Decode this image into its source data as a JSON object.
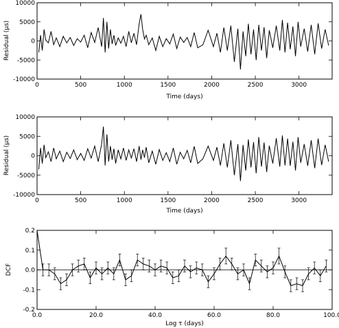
{
  "chart_data": [
    {
      "type": "line",
      "title": "",
      "xlabel": "Time (days)",
      "ylabel": "Residual (μs)",
      "xlim": [
        0,
        3380
      ],
      "ylim": [
        -10000,
        10000
      ],
      "xticks": [
        0,
        500,
        1000,
        1500,
        2000,
        2500,
        3000
      ],
      "yticks": [
        -10000,
        -5000,
        0,
        5000,
        10000
      ],
      "grid": false,
      "series": [
        {
          "x": [
            20,
            40,
            60,
            80,
            100,
            130,
            160,
            190,
            220,
            260,
            300,
            340,
            380,
            420,
            460,
            500,
            540,
            580,
            620,
            660,
            700,
            740,
            760,
            780,
            800,
            820,
            840,
            860,
            880,
            900,
            930,
            960,
            990,
            1020,
            1050,
            1080,
            1110,
            1140,
            1170,
            1190,
            1210,
            1230,
            1250,
            1280,
            1320,
            1360,
            1400,
            1440,
            1480,
            1520,
            1560,
            1600,
            1640,
            1680,
            1720,
            1760,
            1800,
            1840,
            1900,
            1960,
            2020,
            2060,
            2100,
            2140,
            2180,
            2220,
            2260,
            2300,
            2330,
            2360,
            2390,
            2420,
            2450,
            2480,
            2510,
            2540,
            2570,
            2600,
            2630,
            2660,
            2700,
            2740,
            2780,
            2810,
            2840,
            2870,
            2900,
            2930,
            2960,
            2990,
            3020,
            3060,
            3100,
            3140,
            3180,
            3220,
            3260,
            3300,
            3340
          ],
          "y": [
            -3000,
            1500,
            -2500,
            3000,
            200,
            -500,
            2500,
            -1000,
            800,
            -1500,
            1200,
            -500,
            900,
            -1200,
            600,
            -300,
            1500,
            -1800,
            2200,
            -400,
            3500,
            -1500,
            6000,
            -3000,
            5000,
            -2000,
            3000,
            -800,
            1500,
            -1200,
            800,
            -600,
            1200,
            -1500,
            2500,
            -500,
            2000,
            -1000,
            4500,
            7000,
            3000,
            500,
            1500,
            -1000,
            800,
            -2500,
            1200,
            -1500,
            600,
            -800,
            1800,
            -2000,
            1000,
            -400,
            900,
            -1500,
            2200,
            -1800,
            -1000,
            2800,
            -1500,
            2000,
            -3000,
            3500,
            -2500,
            4000,
            -5500,
            3200,
            -7500,
            2500,
            -4000,
            4500,
            -3500,
            3000,
            -5000,
            4200,
            -2500,
            3600,
            -4500,
            2800,
            -1800,
            4000,
            -2500,
            5500,
            -3000,
            4800,
            -2200,
            3800,
            -4000,
            5000,
            -1500,
            3200,
            -2800,
            4200,
            -3500,
            4600,
            -2000,
            3000,
            -1200
          ]
        }
      ]
    },
    {
      "type": "line",
      "title": "",
      "xlabel": "Time (days)",
      "ylabel": "Residual (μs)",
      "xlim": [
        0,
        3380
      ],
      "ylim": [
        -10000,
        10000
      ],
      "xticks": [
        0,
        500,
        1000,
        1500,
        2000,
        2500,
        3000
      ],
      "yticks": [
        -10000,
        -5000,
        0,
        5000,
        10000
      ],
      "grid": false,
      "series": [
        {
          "x": [
            20,
            40,
            60,
            80,
            100,
            130,
            160,
            190,
            220,
            260,
            300,
            340,
            380,
            420,
            460,
            500,
            540,
            580,
            620,
            660,
            700,
            740,
            760,
            780,
            800,
            820,
            840,
            860,
            880,
            900,
            930,
            960,
            990,
            1020,
            1050,
            1080,
            1110,
            1140,
            1170,
            1190,
            1210,
            1230,
            1250,
            1280,
            1320,
            1360,
            1400,
            1440,
            1480,
            1520,
            1560,
            1600,
            1640,
            1680,
            1720,
            1760,
            1800,
            1840,
            1900,
            1960,
            2020,
            2060,
            2100,
            2140,
            2180,
            2220,
            2260,
            2300,
            2330,
            2360,
            2390,
            2420,
            2450,
            2480,
            2510,
            2540,
            2570,
            2600,
            2630,
            2660,
            2700,
            2740,
            2780,
            2810,
            2840,
            2870,
            2900,
            2930,
            2960,
            2990,
            3020,
            3060,
            3100,
            3140,
            3180,
            3220,
            3260,
            3300,
            3340
          ],
          "y": [
            -3500,
            2000,
            -2000,
            2800,
            -500,
            1000,
            -1500,
            2000,
            -800,
            1200,
            -1500,
            900,
            -700,
            1500,
            -1000,
            600,
            -1200,
            1800,
            -600,
            2500,
            -1500,
            3000,
            7500,
            -2500,
            5500,
            -1500,
            2500,
            -1000,
            1800,
            -2000,
            1500,
            -800,
            2000,
            -1200,
            1500,
            -600,
            1800,
            -1500,
            2500,
            -1000,
            1500,
            -500,
            2200,
            -1800,
            1200,
            -2200,
            1600,
            -1200,
            800,
            -1500,
            2000,
            -2200,
            900,
            -800,
            1400,
            -1800,
            2400,
            -2000,
            -800,
            2500,
            -1200,
            2200,
            -2500,
            3200,
            -3000,
            4000,
            -5000,
            3000,
            -6500,
            2800,
            -3800,
            4200,
            -3000,
            3500,
            -4500,
            4800,
            -2800,
            3400,
            -4200,
            2600,
            -2000,
            4500,
            -2800,
            5200,
            -2500,
            4400,
            -2600,
            3600,
            -3800,
            4800,
            -1800,
            3000,
            -2600,
            4000,
            -3200,
            4400,
            -2400,
            2800,
            -1500
          ]
        }
      ]
    },
    {
      "type": "line",
      "title": "",
      "xlabel": "Log τ (days)",
      "ylabel": "DCF",
      "xlim": [
        0,
        100
      ],
      "ylim": [
        -0.2,
        0.2
      ],
      "xticks": [
        0,
        20,
        40,
        60,
        80,
        100
      ],
      "yticks": [
        -0.2,
        -0.1,
        0.0,
        0.1,
        0.2
      ],
      "grid": false,
      "reference_line": 0,
      "series": [
        {
          "x": [
            0,
            2,
            4,
            6,
            8,
            10,
            12,
            14,
            16,
            18,
            20,
            22,
            24,
            26,
            28,
            30,
            32,
            34,
            36,
            38,
            40,
            42,
            44,
            46,
            48,
            50,
            52,
            54,
            56,
            58,
            60,
            62,
            64,
            66,
            68,
            70,
            72,
            74,
            76,
            78,
            80,
            82,
            84,
            86,
            88,
            90,
            92,
            94,
            96,
            98
          ],
          "y": [
            0.23,
            0.0,
            0.0,
            -0.02,
            -0.07,
            -0.05,
            0.0,
            0.02,
            0.03,
            -0.04,
            0.01,
            -0.02,
            0.01,
            -0.02,
            0.05,
            -0.05,
            -0.03,
            0.05,
            0.03,
            0.02,
            0.0,
            0.02,
            0.01,
            -0.04,
            -0.03,
            0.02,
            -0.01,
            0.01,
            0.0,
            -0.06,
            -0.02,
            0.03,
            0.07,
            0.03,
            -0.02,
            0.0,
            -0.07,
            0.05,
            0.02,
            -0.01,
            0.01,
            0.07,
            -0.01,
            -0.08,
            -0.07,
            -0.08,
            -0.02,
            0.01,
            -0.03,
            0.02
          ],
          "err": [
            0.0,
            0.03,
            0.03,
            0.03,
            0.03,
            0.03,
            0.03,
            0.03,
            0.03,
            0.03,
            0.03,
            0.03,
            0.03,
            0.03,
            0.03,
            0.03,
            0.03,
            0.03,
            0.03,
            0.03,
            0.03,
            0.03,
            0.03,
            0.03,
            0.03,
            0.03,
            0.03,
            0.03,
            0.03,
            0.03,
            0.03,
            0.03,
            0.04,
            0.03,
            0.03,
            0.03,
            0.03,
            0.03,
            0.03,
            0.03,
            0.03,
            0.04,
            0.03,
            0.03,
            0.03,
            0.03,
            0.03,
            0.03,
            0.03,
            0.03
          ]
        }
      ]
    }
  ]
}
